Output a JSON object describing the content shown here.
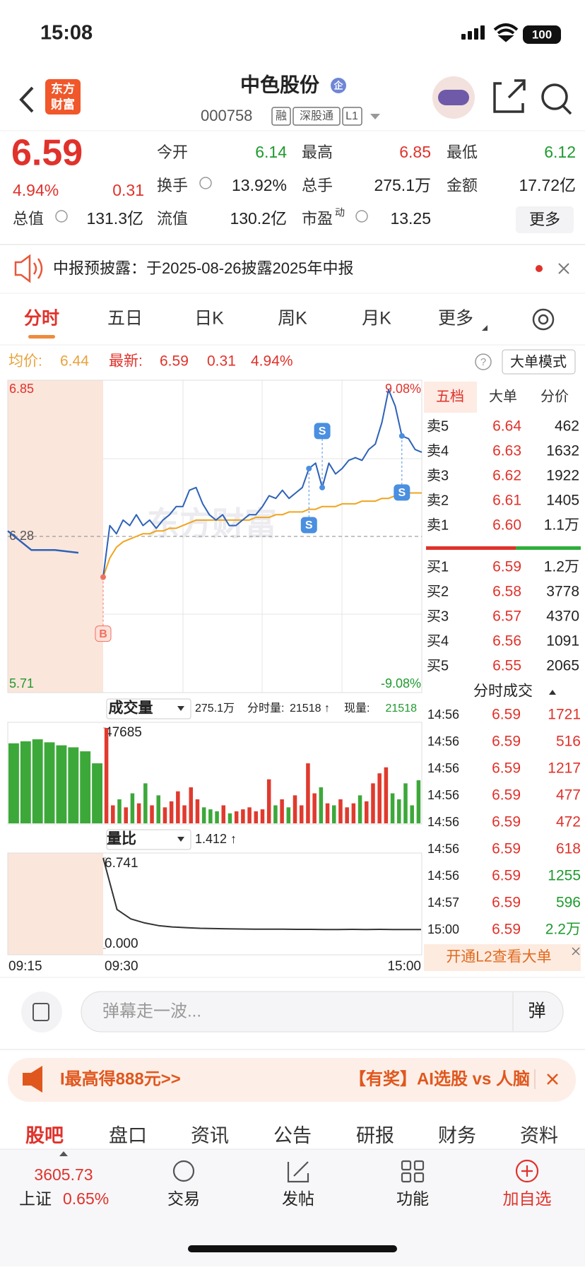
{
  "status_bar": {
    "time": "15:08",
    "battery": "100"
  },
  "header": {
    "logo": [
      "东方",
      "财富"
    ],
    "title": "中色股份",
    "badge": "企",
    "code": "000758",
    "tags": [
      "融",
      "深股通",
      "L1"
    ]
  },
  "quote": {
    "price": "6.59",
    "change_pct": "4.94%",
    "change": "0.31",
    "fields": [
      {
        "label": "今开",
        "value": "6.14",
        "color": "#1f9a2f"
      },
      {
        "label": "最高",
        "value": "6.85",
        "color": "#e0322b"
      },
      {
        "label": "最低",
        "value": "6.12",
        "color": "#1f9a2f"
      },
      {
        "label": "换手",
        "value": "13.92%",
        "color": "#222"
      },
      {
        "label": "总手",
        "value": "275.1万",
        "color": "#222"
      },
      {
        "label": "金额",
        "value": "17.72亿",
        "color": "#222"
      },
      {
        "label": "总值",
        "value": "131.3亿",
        "color": "#222"
      },
      {
        "label": "流值",
        "value": "130.2亿",
        "color": "#222"
      },
      {
        "label": "市盈",
        "sup": "动",
        "value": "13.25",
        "color": "#222"
      }
    ],
    "more": "更多"
  },
  "notice": {
    "text": "中报预披露：于2025-08-26披露2025年中报"
  },
  "tabs": [
    "分时",
    "五日",
    "日K",
    "周K",
    "月K",
    "更多"
  ],
  "info": {
    "avg_label": "均价:",
    "avg": "6.44",
    "latest_label": "最新:",
    "latest": "6.59",
    "change": "0.31",
    "change_pct": "4.94%",
    "help": "?",
    "mode": "大单模式"
  },
  "price_chart": {
    "ylim": [
      5.71,
      6.85
    ],
    "yticks": [
      5.71,
      6.28,
      6.85
    ],
    "pct_labels": [
      "9.08%",
      "-9.08%"
    ],
    "xticks": [
      "09:15",
      "09:30",
      "15:00"
    ],
    "watermark": "东方财富",
    "colors": {
      "price": "#2d62b8",
      "avg": "#f0a41e"
    },
    "auction": [
      6.3,
      6.23,
      6.23,
      6.22
    ],
    "price": [
      6.13,
      6.32,
      6.29,
      6.34,
      6.32,
      6.36,
      6.32,
      6.34,
      6.31,
      6.34,
      6.36,
      6.39,
      6.39,
      6.45,
      6.46,
      6.4,
      6.36,
      6.34,
      6.36,
      6.32,
      6.32,
      6.34,
      6.36,
      6.36,
      6.39,
      6.43,
      6.42,
      6.45,
      6.42,
      6.44,
      6.46,
      6.53,
      6.55,
      6.46,
      6.55,
      6.51,
      6.53,
      6.56,
      6.57,
      6.56,
      6.6,
      6.62,
      6.7,
      6.82,
      6.76,
      6.65,
      6.64,
      6.6,
      6.59
    ],
    "avg": [
      6.13,
      6.2,
      6.24,
      6.26,
      6.27,
      6.28,
      6.29,
      6.29,
      6.3,
      6.3,
      6.31,
      6.31,
      6.32,
      6.33,
      6.34,
      6.34,
      6.34,
      6.34,
      6.34,
      6.34,
      6.34,
      6.34,
      6.34,
      6.35,
      6.35,
      6.35,
      6.36,
      6.36,
      6.37,
      6.37,
      6.37,
      6.38,
      6.38,
      6.39,
      6.39,
      6.39,
      6.4,
      6.4,
      6.4,
      6.41,
      6.41,
      6.41,
      6.42,
      6.42,
      6.43,
      6.43,
      6.44,
      6.44,
      6.44
    ],
    "markers": [
      {
        "label": "B",
        "index": 0,
        "side": "below"
      },
      {
        "label": "S",
        "index": 31,
        "side": "below"
      },
      {
        "label": "S",
        "index": 33,
        "side": "above"
      },
      {
        "label": "S",
        "index": 45,
        "side": "below"
      }
    ]
  },
  "volume_chart": {
    "selector": "成交量",
    "total": "275.1万",
    "minute_label": "分时量:",
    "minute": "21518 ↑",
    "current_label": "现量:",
    "current": "21518",
    "ylim": [
      0,
      47685
    ],
    "yticks": [
      47685
    ],
    "auction": [
      40000,
      41000,
      42000,
      40500,
      39000,
      38000,
      36000,
      30000
    ],
    "values": [
      47685,
      9000,
      12000,
      8000,
      15000,
      10000,
      20000,
      9000,
      14000,
      8000,
      11000,
      16000,
      9000,
      18000,
      12000,
      8000,
      7000,
      6000,
      9000,
      5000,
      6000,
      7000,
      8000,
      6000,
      7000,
      22000,
      9000,
      12000,
      8000,
      14000,
      9000,
      30000,
      15000,
      18000,
      10000,
      9000,
      12000,
      8000,
      10000,
      14000,
      11000,
      20000,
      25000,
      28000,
      15000,
      12000,
      20000,
      9000,
      21518
    ]
  },
  "ratio_chart": {
    "selector": "量比",
    "current": "1.412 ↑",
    "ylim": [
      0,
      6.741
    ],
    "yticks": [
      {
        "value": 0,
        "label": "0.000"
      },
      6.741
    ],
    "values": [
      6.741,
      2.9,
      2.2,
      1.9,
      1.7,
      1.6,
      1.55,
      1.5,
      1.48,
      1.46,
      1.45,
      1.44,
      1.43,
      1.43,
      1.42,
      1.42,
      1.41,
      1.41,
      1.42,
      1.41,
      1.42,
      1.41,
      1.41,
      1.412
    ]
  },
  "order_book": {
    "tabs": [
      "五档",
      "大单",
      "分价"
    ],
    "sell": [
      {
        "label": "卖5",
        "price": "6.64",
        "volume": "462"
      },
      {
        "label": "卖4",
        "price": "6.63",
        "volume": "1632"
      },
      {
        "label": "卖3",
        "price": "6.62",
        "volume": "1922"
      },
      {
        "label": "卖2",
        "price": "6.61",
        "volume": "1405"
      },
      {
        "label": "卖1",
        "price": "6.60",
        "volume": "1.1万"
      }
    ],
    "buy": [
      {
        "label": "买1",
        "price": "6.59",
        "volume": "1.2万"
      },
      {
        "label": "买2",
        "price": "6.58",
        "volume": "3778"
      },
      {
        "label": "买3",
        "price": "6.57",
        "volume": "4370"
      },
      {
        "label": "买4",
        "price": "6.56",
        "volume": "1091"
      },
      {
        "label": "买5",
        "price": "6.55",
        "volume": "2065"
      }
    ]
  },
  "trades": {
    "title": "分时成交",
    "rows": [
      {
        "time": "14:56",
        "price": "6.59",
        "volume": "1721",
        "color": "#e0322b"
      },
      {
        "time": "14:56",
        "price": "6.59",
        "volume": "516",
        "color": "#e0322b"
      },
      {
        "time": "14:56",
        "price": "6.59",
        "volume": "1217",
        "color": "#e0322b"
      },
      {
        "time": "14:56",
        "price": "6.59",
        "volume": "477",
        "color": "#e0322b"
      },
      {
        "time": "14:56",
        "price": "6.59",
        "volume": "472",
        "color": "#e0322b"
      },
      {
        "time": "14:56",
        "price": "6.59",
        "volume": "618",
        "color": "#e0322b"
      },
      {
        "time": "14:56",
        "price": "6.59",
        "volume": "1255",
        "color": "#1f9a2f"
      },
      {
        "time": "14:57",
        "price": "6.59",
        "volume": "596",
        "color": "#1f9a2f"
      },
      {
        "time": "15:00",
        "price": "6.59",
        "volume": "2.2万",
        "color": "#1f9a2f"
      }
    ],
    "footer": "开通L2查看大单"
  },
  "comment": {
    "placeholder": "弹幕走一波...",
    "button": "弹"
  },
  "ad": {
    "left": "I最高得888元>>",
    "right": "【有奖】AI选股 vs 人脑"
  },
  "sub_tabs": [
    "股吧",
    "盘口",
    "资讯",
    "公告",
    "研报",
    "财务",
    "资料"
  ],
  "nav": {
    "index_value": "3605.73",
    "index_name": "上证",
    "index_change": "0.65%",
    "items": [
      "交易",
      "发帖",
      "功能",
      "加自选"
    ]
  }
}
